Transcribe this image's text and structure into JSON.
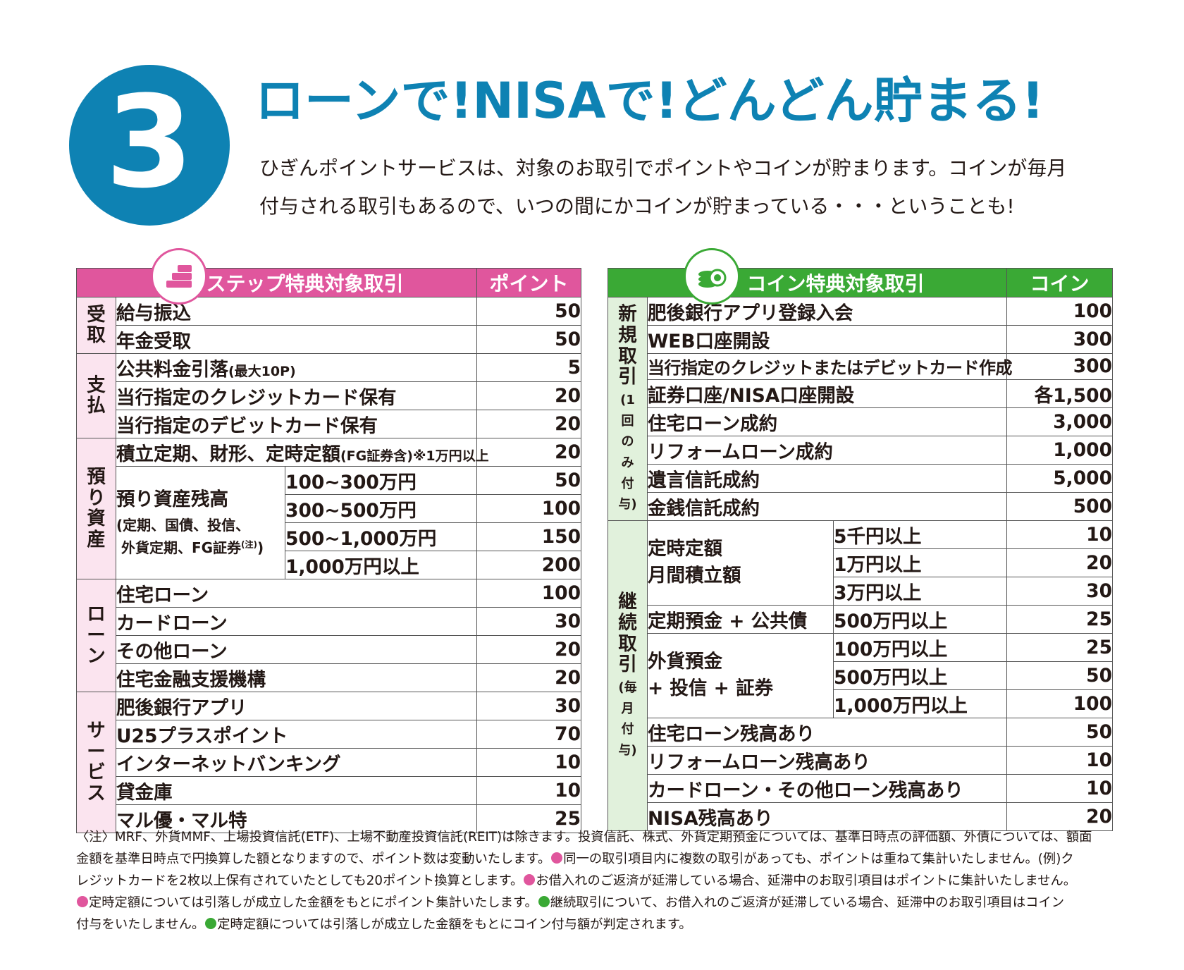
{
  "section_number": "3",
  "title": "ローンで!NISAで!どんどん貯まる!",
  "intro": [
    "ひぎんポイントサービスは、対象のお取引でポイントやコインが貯まります。コインが毎月",
    "付与される取引もあるので、いつの間にかコインが貯まっている・・・ということも!"
  ],
  "step_table": {
    "header_title": "ステップ特典対象取引",
    "header_value": "ポイント",
    "categories": {
      "receive": "受取",
      "payment": "支払",
      "deposit": "預り資産",
      "loan": "ローン",
      "service": "サービス"
    },
    "rows": {
      "r1": {
        "label": "給与振込",
        "value": "50"
      },
      "r2": {
        "label": "年金受取",
        "value": "50"
      },
      "r3": {
        "label": "公共料金引落",
        "note": "(最大10P)",
        "value": "5"
      },
      "r4": {
        "label": "当行指定のクレジットカード保有",
        "value": "20"
      },
      "r5": {
        "label": "当行指定のデビットカード保有",
        "value": "20"
      },
      "r6": {
        "label": "積立定期、財形、定時定額",
        "note": "(FG証券含)※1万円以上",
        "value": "20"
      },
      "balance_label": "預り資産残高",
      "balance_note1": "(定期、国債、投信、",
      "balance_note2": "外貨定期、FG証券",
      "balance_note_mark": "(注)",
      "balance_note_end": ")",
      "b1": {
        "range": "100~300万円",
        "value": "50"
      },
      "b2": {
        "range": "300~500万円",
        "value": "100"
      },
      "b3": {
        "range": "500~1,000万円",
        "value": "150"
      },
      "b4": {
        "range": "1,000万円以上",
        "value": "200"
      },
      "l1": {
        "label": "住宅ローン",
        "value": "100"
      },
      "l2": {
        "label": "カードローン",
        "value": "30"
      },
      "l3": {
        "label": "その他ローン",
        "value": "20"
      },
      "l4": {
        "label": "住宅金融支援機構",
        "value": "20"
      },
      "s1": {
        "label": "肥後銀行アプリ",
        "value": "30"
      },
      "s2": {
        "label": "U25プラスポイント",
        "value": "70"
      },
      "s3": {
        "label": "インターネットバンキング",
        "value": "10"
      },
      "s4": {
        "label": "貸金庫",
        "value": "10"
      },
      "s5": {
        "label": "マル優・マル特",
        "value": "25"
      }
    }
  },
  "coin_table": {
    "header_title": "コイン特典対象取引",
    "header_value": "コイン",
    "categories": {
      "new_main": "新規取引",
      "new_sub": "(1回のみ付与)",
      "cont_main": "継続取引",
      "cont_sub": "(毎月付与)"
    },
    "rows": {
      "n1": {
        "label": "肥後銀行アプリ登録入会",
        "value": "100"
      },
      "n2": {
        "label": "WEB口座開設",
        "value": "300"
      },
      "n3": {
        "label": "当行指定のクレジットまたはデビットカード作成",
        "value": "300"
      },
      "n4": {
        "label": "証券口座/NISA口座開設",
        "value": "各1,500"
      },
      "n5": {
        "label": "住宅ローン成約",
        "value": "3,000"
      },
      "n6": {
        "label": "リフォームローン成約",
        "value": "1,000"
      },
      "n7": {
        "label": "遺言信託成約",
        "value": "5,000"
      },
      "n8": {
        "label": "金銭信託成約",
        "value": "500"
      },
      "fixed_label1": "定時定額",
      "fixed_label2": "月間積立額",
      "f1": {
        "range": "5千円以上",
        "value": "10"
      },
      "f2": {
        "range": "1万円以上",
        "value": "20"
      },
      "f3": {
        "range": "3万円以上",
        "value": "30"
      },
      "tp": {
        "label": "定期預金 + 公共債",
        "range": "500万円以上",
        "value": "25"
      },
      "fx_label1": "外貨預金",
      "fx_label2": "+ 投信 + 証券",
      "x1": {
        "range": "100万円以上",
        "value": "25"
      },
      "x2": {
        "range": "500万円以上",
        "value": "50"
      },
      "x3": {
        "range": "1,000万円以上",
        "value": "100"
      },
      "c1": {
        "label": "住宅ローン残高あり",
        "value": "50"
      },
      "c2": {
        "label": "リフォームローン残高あり",
        "value": "10"
      },
      "c3": {
        "label": "カードローン・その他ローン残高あり",
        "value": "10"
      },
      "c4": {
        "label": "NISA残高あり",
        "value": "20"
      }
    }
  },
  "notes": [
    "〈注〉MRF、外貨MMF、上場投資信託(ETF)、上場不動産投資信託(REIT)は除きます。投資信託、株式、外貨定期預金については、基準日時点の評価額、外債については、額面",
    "金額を基準日時点で円換算した額となりますので、ポイント数は変動いたします。",
    "同一の取引項目内に複数の取引があっても、ポイントは重ねて集計いたしません。(例)ク",
    "レジットカードを2枚以上保有されていたとしても20ポイント換算とします。",
    "お借入れのご返済が延滞している場合、延滞中のお取引項目はポイントに集計いたしません。",
    "定時定額については引落しが成立した金額をもとにポイント集計いたします。",
    "継続取引について、お借入れのご返済が延滞している場合、延滞中のお取引項目はコイン",
    "付与をいたしません。",
    "定時定額については引落しが成立した金額をもとにコイン付与額が判定されます。"
  ],
  "colors": {
    "blue": "#0e82b3",
    "pink": "#e0569d",
    "green": "#3aa935",
    "pink_light": "#fbe4ef",
    "green_light": "#e1f1dc"
  }
}
